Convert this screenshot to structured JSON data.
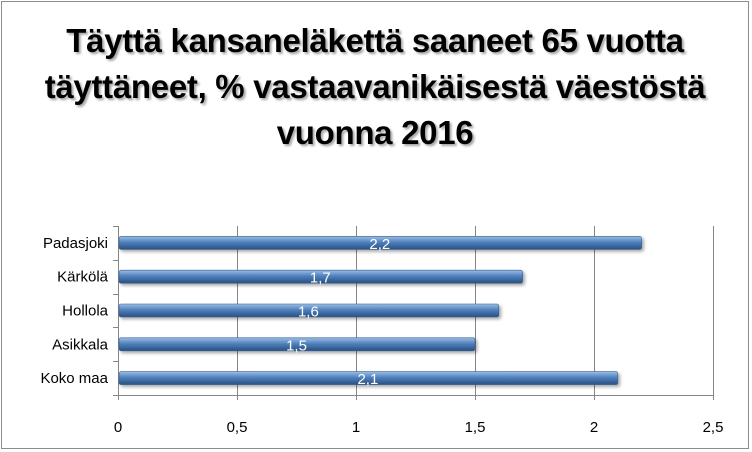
{
  "chart_data": {
    "type": "bar",
    "orientation": "horizontal",
    "title": "Täyttä kansaneläkettä saaneet 65 vuotta täyttäneet, % vastaavanikäisestä väestöstä vuonna 2016",
    "categories": [
      "Padasjoki",
      "Kärkölä",
      "Hollola",
      "Asikkala",
      "Koko maa"
    ],
    "values": [
      2.2,
      1.7,
      1.6,
      1.5,
      2.1
    ],
    "data_labels": [
      "2,2",
      "1,7",
      "1,6",
      "1,5",
      "2,1"
    ],
    "xlim": [
      0,
      2.5
    ],
    "ticks": [
      0,
      0.5,
      1,
      1.5,
      2,
      2.5
    ],
    "tick_labels": [
      "0",
      "0,5",
      "1",
      "1,5",
      "2",
      "2,5"
    ],
    "grid": "vertical",
    "legend": "none",
    "xlabel": "",
    "ylabel": "",
    "colors": {
      "bar_top": "#9dbde6",
      "bar_mid": "#4f81bd",
      "bar_bottom": "#2a4f80",
      "grid": "#868686",
      "axis": "#868686"
    }
  }
}
